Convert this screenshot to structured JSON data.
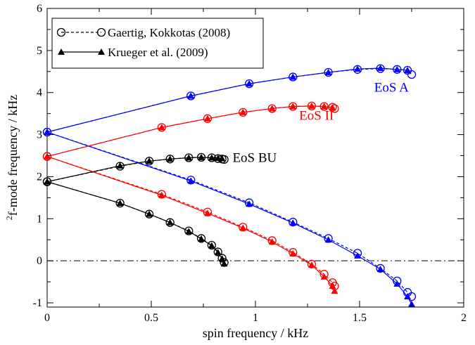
{
  "chart_data": {
    "type": "line",
    "title": "",
    "xlabel": "spin frequency / kHz",
    "ylabel_superscript": "2",
    "ylabel": "f-mode frequency / kHz",
    "xlim": [
      0,
      2
    ],
    "ylim": [
      -1.1,
      6
    ],
    "xticks": [
      "0",
      "0.5",
      "1",
      "1.5",
      "2"
    ],
    "yticks": [
      "-1",
      "0",
      "1",
      "2",
      "3",
      "4",
      "5",
      "6"
    ],
    "xtick_values": [
      0,
      0.5,
      1,
      1.5,
      2
    ],
    "ytick_values": [
      -1,
      0,
      1,
      2,
      3,
      4,
      5,
      6
    ],
    "reference_line": {
      "y": 0,
      "style": "dash-dot",
      "color": "#000000"
    },
    "legend": {
      "placement": "top-left",
      "entries": [
        {
          "label": "Gaertig, Kokkotas (2008)",
          "marker": "open-circle",
          "line": "dashed"
        },
        {
          "label": "Krueger et al. (2009)",
          "marker": "filled-triangle",
          "line": "solid"
        }
      ]
    },
    "annotations": [
      {
        "text": "EoS A",
        "color": "#0000ff",
        "x": 1.57,
        "y": 4.02
      },
      {
        "text": "EoS II",
        "color": "#ff0000",
        "x": 1.21,
        "y": 3.35
      },
      {
        "text": "EoS BU",
        "color": "#000000",
        "x": 0.89,
        "y": 2.35
      }
    ],
    "series": [
      {
        "eos": "EoS A",
        "branch": "upper",
        "color": "#0000ff",
        "circles": [
          [
            0,
            3.06
          ],
          [
            0.69,
            3.92
          ],
          [
            0.97,
            4.21
          ],
          [
            1.18,
            4.37
          ],
          [
            1.35,
            4.48
          ],
          [
            1.49,
            4.55
          ],
          [
            1.6,
            4.57
          ],
          [
            1.68,
            4.55
          ],
          [
            1.73,
            4.53
          ],
          [
            1.75,
            4.43
          ]
        ],
        "triangles": [
          [
            0,
            3.06
          ],
          [
            0.69,
            3.92
          ],
          [
            0.97,
            4.21
          ],
          [
            1.18,
            4.37
          ],
          [
            1.35,
            4.48
          ],
          [
            1.49,
            4.56
          ],
          [
            1.6,
            4.58
          ],
          [
            1.68,
            4.55
          ],
          [
            1.73,
            4.53
          ]
        ]
      },
      {
        "eos": "EoS A",
        "branch": "lower",
        "color": "#0000ff",
        "circles": [
          [
            0,
            3.06
          ],
          [
            0.69,
            1.92
          ],
          [
            0.97,
            1.38
          ],
          [
            1.18,
            0.92
          ],
          [
            1.35,
            0.53
          ],
          [
            1.49,
            0.18
          ],
          [
            1.6,
            -0.18
          ],
          [
            1.68,
            -0.48
          ],
          [
            1.73,
            -0.75
          ],
          [
            1.75,
            -0.85
          ]
        ],
        "triangles": [
          [
            0,
            3.06
          ],
          [
            0.69,
            1.9
          ],
          [
            0.97,
            1.35
          ],
          [
            1.18,
            0.9
          ],
          [
            1.35,
            0.5
          ],
          [
            1.49,
            0.12
          ],
          [
            1.6,
            -0.2
          ],
          [
            1.68,
            -0.55
          ],
          [
            1.73,
            -0.85
          ],
          [
            1.75,
            -1.03
          ]
        ]
      },
      {
        "eos": "EoS II",
        "branch": "upper",
        "color": "#ff0000",
        "circles": [
          [
            0,
            2.48
          ],
          [
            0.55,
            3.17
          ],
          [
            0.77,
            3.38
          ],
          [
            0.94,
            3.53
          ],
          [
            1.08,
            3.62
          ],
          [
            1.18,
            3.67
          ],
          [
            1.27,
            3.68
          ],
          [
            1.33,
            3.67
          ],
          [
            1.37,
            3.65
          ],
          [
            1.38,
            3.62
          ]
        ],
        "triangles": [
          [
            0,
            2.48
          ],
          [
            0.55,
            3.17
          ],
          [
            0.77,
            3.38
          ],
          [
            0.94,
            3.53
          ],
          [
            1.08,
            3.62
          ],
          [
            1.18,
            3.67
          ],
          [
            1.27,
            3.68
          ],
          [
            1.33,
            3.67
          ],
          [
            1.37,
            3.64
          ]
        ]
      },
      {
        "eos": "EoS II",
        "branch": "lower",
        "color": "#ff0000",
        "circles": [
          [
            0,
            2.48
          ],
          [
            0.55,
            1.58
          ],
          [
            0.77,
            1.16
          ],
          [
            0.94,
            0.8
          ],
          [
            1.08,
            0.48
          ],
          [
            1.18,
            0.2
          ],
          [
            1.27,
            -0.08
          ],
          [
            1.33,
            -0.32
          ],
          [
            1.37,
            -0.52
          ],
          [
            1.38,
            -0.6
          ]
        ],
        "triangles": [
          [
            0,
            2.48
          ],
          [
            0.55,
            1.56
          ],
          [
            0.77,
            1.13
          ],
          [
            0.94,
            0.78
          ],
          [
            1.08,
            0.45
          ],
          [
            1.18,
            0.17
          ],
          [
            1.27,
            -0.1
          ],
          [
            1.33,
            -0.38
          ],
          [
            1.37,
            -0.6
          ],
          [
            1.38,
            -0.72
          ]
        ]
      },
      {
        "eos": "EoS BU",
        "branch": "upper",
        "color": "#000000",
        "circles": [
          [
            0,
            1.88
          ],
          [
            0.35,
            2.25
          ],
          [
            0.49,
            2.37
          ],
          [
            0.59,
            2.42
          ],
          [
            0.68,
            2.45
          ],
          [
            0.74,
            2.46
          ],
          [
            0.79,
            2.45
          ],
          [
            0.82,
            2.43
          ],
          [
            0.84,
            2.42
          ],
          [
            0.85,
            2.41
          ]
        ],
        "triangles": [
          [
            0,
            1.88
          ],
          [
            0.35,
            2.26
          ],
          [
            0.49,
            2.37
          ],
          [
            0.59,
            2.42
          ],
          [
            0.68,
            2.45
          ],
          [
            0.74,
            2.46
          ],
          [
            0.79,
            2.45
          ],
          [
            0.82,
            2.44
          ],
          [
            0.84,
            2.43
          ]
        ]
      },
      {
        "eos": "EoS BU",
        "branch": "lower",
        "color": "#000000",
        "circles": [
          [
            0,
            1.88
          ],
          [
            0.35,
            1.37
          ],
          [
            0.49,
            1.11
          ],
          [
            0.59,
            0.91
          ],
          [
            0.68,
            0.71
          ],
          [
            0.74,
            0.53
          ],
          [
            0.79,
            0.37
          ],
          [
            0.82,
            0.21
          ],
          [
            0.84,
            0.06
          ],
          [
            0.85,
            -0.04
          ]
        ],
        "triangles": [
          [
            0,
            1.88
          ],
          [
            0.35,
            1.37
          ],
          [
            0.49,
            1.11
          ],
          [
            0.59,
            0.91
          ],
          [
            0.68,
            0.7
          ],
          [
            0.74,
            0.52
          ],
          [
            0.79,
            0.36
          ],
          [
            0.82,
            0.2
          ],
          [
            0.84,
            0.05
          ],
          [
            0.85,
            -0.07
          ]
        ]
      }
    ]
  }
}
